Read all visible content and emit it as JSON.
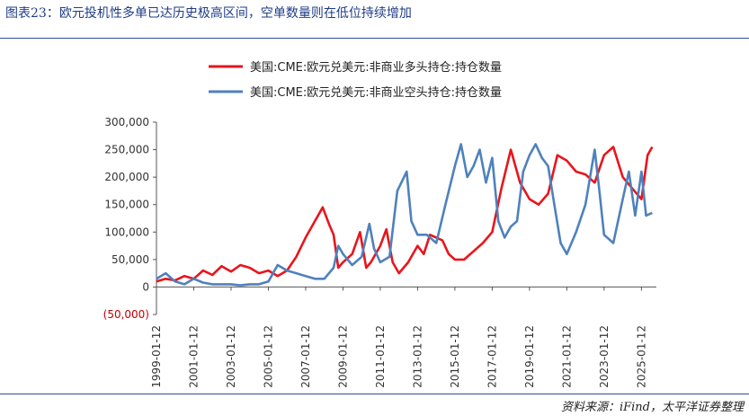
{
  "title": "图表23：欧元投机性多单已达历史极高区间，空单数量则在低位持续增加",
  "source": "资料来源：iFind，太平洋证券整理",
  "colors": {
    "long": "#e8151c",
    "short": "#4f81bd",
    "accent": "#1f3c88"
  },
  "chart_data": {
    "type": "line",
    "title": "",
    "xlabel": "",
    "ylabel": "",
    "ylim": [
      -50000,
      300000
    ],
    "yticks": [
      300000,
      250000,
      200000,
      150000,
      100000,
      50000,
      0,
      -50000
    ],
    "ytick_labels": [
      "300,000",
      "250,000",
      "200,000",
      "150,000",
      "100,000",
      "50,000",
      "0",
      "(50,000)"
    ],
    "xticks": [
      "1999-01-12",
      "2001-01-12",
      "2003-01-12",
      "2005-01-12",
      "2007-01-12",
      "2009-01-12",
      "2011-01-12",
      "2013-01-12",
      "2015-01-12",
      "2017-01-12",
      "2019-01-12",
      "2021-01-12",
      "2023-01-12",
      "2025-01-12"
    ],
    "legend_position": "top",
    "grid": false,
    "series": [
      {
        "name": "美国:CME:欧元兑美元:非商业多头持仓:持仓数量",
        "color": "#e8151c",
        "points": [
          [
            "1999-01-12",
            10000
          ],
          [
            "1999-07-12",
            15000
          ],
          [
            "2000-01-12",
            12000
          ],
          [
            "2000-07-12",
            20000
          ],
          [
            "2001-01-12",
            15000
          ],
          [
            "2001-07-12",
            30000
          ],
          [
            "2002-01-12",
            22000
          ],
          [
            "2002-07-12",
            38000
          ],
          [
            "2003-01-12",
            28000
          ],
          [
            "2003-07-12",
            40000
          ],
          [
            "2004-01-12",
            35000
          ],
          [
            "2004-07-12",
            25000
          ],
          [
            "2005-01-12",
            30000
          ],
          [
            "2005-07-12",
            20000
          ],
          [
            "2006-01-12",
            30000
          ],
          [
            "2006-07-12",
            55000
          ],
          [
            "2007-01-12",
            90000
          ],
          [
            "2007-07-12",
            120000
          ],
          [
            "2007-12-12",
            145000
          ],
          [
            "2008-04-12",
            115000
          ],
          [
            "2008-07-12",
            95000
          ],
          [
            "2008-10-12",
            35000
          ],
          [
            "2009-01-12",
            45000
          ],
          [
            "2009-07-12",
            60000
          ],
          [
            "2009-12-12",
            100000
          ],
          [
            "2010-04-12",
            35000
          ],
          [
            "2010-07-12",
            45000
          ],
          [
            "2011-01-12",
            75000
          ],
          [
            "2011-05-12",
            105000
          ],
          [
            "2011-09-12",
            45000
          ],
          [
            "2012-01-12",
            25000
          ],
          [
            "2012-07-12",
            45000
          ],
          [
            "2013-01-12",
            75000
          ],
          [
            "2013-05-12",
            60000
          ],
          [
            "2013-09-12",
            95000
          ],
          [
            "2014-01-12",
            90000
          ],
          [
            "2014-05-12",
            85000
          ],
          [
            "2014-09-12",
            60000
          ],
          [
            "2015-01-12",
            50000
          ],
          [
            "2015-07-12",
            50000
          ],
          [
            "2016-01-12",
            65000
          ],
          [
            "2016-07-12",
            80000
          ],
          [
            "2017-01-12",
            100000
          ],
          [
            "2017-07-12",
            180000
          ],
          [
            "2018-01-12",
            250000
          ],
          [
            "2018-07-12",
            190000
          ],
          [
            "2019-01-12",
            160000
          ],
          [
            "2019-07-12",
            150000
          ],
          [
            "2020-01-12",
            170000
          ],
          [
            "2020-07-12",
            240000
          ],
          [
            "2021-01-12",
            230000
          ],
          [
            "2021-07-12",
            210000
          ],
          [
            "2022-01-12",
            205000
          ],
          [
            "2022-07-12",
            190000
          ],
          [
            "2023-01-12",
            240000
          ],
          [
            "2023-07-12",
            255000
          ],
          [
            "2024-01-12",
            200000
          ],
          [
            "2024-07-12",
            180000
          ],
          [
            "2025-01-12",
            160000
          ],
          [
            "2025-05-12",
            240000
          ],
          [
            "2025-08-12",
            255000
          ]
        ]
      },
      {
        "name": "美国:CME:欧元兑美元:非商业空头持仓:持仓数量",
        "color": "#4f81bd",
        "points": [
          [
            "1999-01-12",
            15000
          ],
          [
            "1999-07-12",
            25000
          ],
          [
            "2000-01-12",
            10000
          ],
          [
            "2000-07-12",
            5000
          ],
          [
            "2001-01-12",
            15000
          ],
          [
            "2001-07-12",
            8000
          ],
          [
            "2002-01-12",
            5000
          ],
          [
            "2002-07-12",
            5000
          ],
          [
            "2003-01-12",
            5000
          ],
          [
            "2003-07-12",
            3000
          ],
          [
            "2004-01-12",
            5000
          ],
          [
            "2004-07-12",
            5000
          ],
          [
            "2005-01-12",
            10000
          ],
          [
            "2005-07-12",
            40000
          ],
          [
            "2006-01-12",
            30000
          ],
          [
            "2006-07-12",
            25000
          ],
          [
            "2007-01-12",
            20000
          ],
          [
            "2007-07-12",
            15000
          ],
          [
            "2008-01-12",
            15000
          ],
          [
            "2008-07-12",
            35000
          ],
          [
            "2008-10-12",
            75000
          ],
          [
            "2009-01-12",
            60000
          ],
          [
            "2009-07-12",
            40000
          ],
          [
            "2010-01-12",
            55000
          ],
          [
            "2010-06-12",
            115000
          ],
          [
            "2010-09-12",
            70000
          ],
          [
            "2011-01-12",
            45000
          ],
          [
            "2011-07-12",
            55000
          ],
          [
            "2011-12-12",
            175000
          ],
          [
            "2012-06-12",
            210000
          ],
          [
            "2012-09-12",
            120000
          ],
          [
            "2013-01-12",
            95000
          ],
          [
            "2013-07-12",
            95000
          ],
          [
            "2014-01-12",
            80000
          ],
          [
            "2014-07-12",
            150000
          ],
          [
            "2015-01-12",
            220000
          ],
          [
            "2015-05-12",
            260000
          ],
          [
            "2015-09-12",
            200000
          ],
          [
            "2016-01-12",
            220000
          ],
          [
            "2016-05-12",
            250000
          ],
          [
            "2016-09-12",
            190000
          ],
          [
            "2017-01-12",
            235000
          ],
          [
            "2017-05-12",
            120000
          ],
          [
            "2017-09-12",
            90000
          ],
          [
            "2018-01-12",
            110000
          ],
          [
            "2018-05-12",
            120000
          ],
          [
            "2018-09-12",
            210000
          ],
          [
            "2019-01-12",
            240000
          ],
          [
            "2019-05-12",
            260000
          ],
          [
            "2019-09-12",
            235000
          ],
          [
            "2020-01-12",
            220000
          ],
          [
            "2020-05-12",
            150000
          ],
          [
            "2020-09-12",
            80000
          ],
          [
            "2021-01-12",
            60000
          ],
          [
            "2021-07-12",
            100000
          ],
          [
            "2022-01-12",
            150000
          ],
          [
            "2022-07-12",
            250000
          ],
          [
            "2022-10-12",
            175000
          ],
          [
            "2023-01-12",
            95000
          ],
          [
            "2023-07-12",
            80000
          ],
          [
            "2024-01-12",
            160000
          ],
          [
            "2024-05-12",
            210000
          ],
          [
            "2024-09-12",
            130000
          ],
          [
            "2025-01-12",
            210000
          ],
          [
            "2025-04-12",
            130000
          ],
          [
            "2025-08-12",
            135000
          ]
        ]
      }
    ]
  }
}
